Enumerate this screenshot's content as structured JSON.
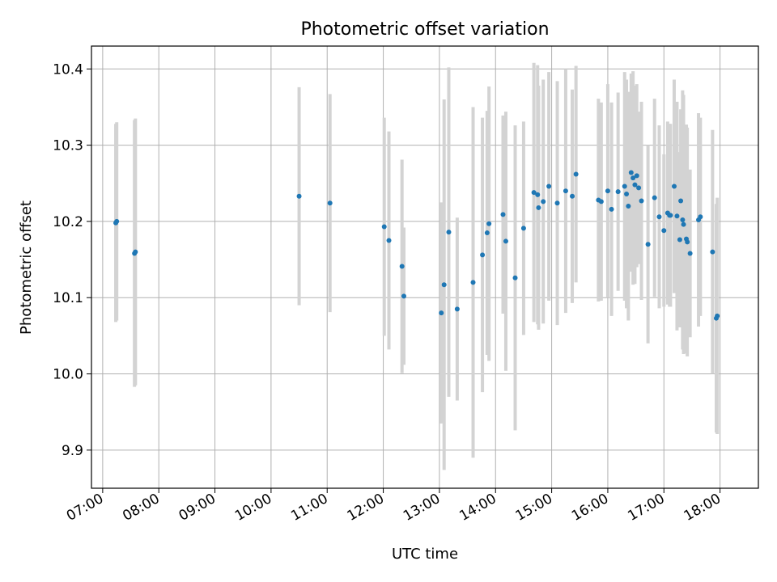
{
  "chart_data": {
    "type": "scatter",
    "title": "Photometric offset variation",
    "xlabel": "UTC time",
    "ylabel": "Photometric offset",
    "x_ticks": [
      "07:00",
      "08:00",
      "09:00",
      "10:00",
      "11:00",
      "12:00",
      "13:00",
      "14:00",
      "15:00",
      "16:00",
      "17:00",
      "18:00"
    ],
    "xlim": [
      "06:48",
      "18:41"
    ],
    "y_ticks": [
      "9.9",
      "10.0",
      "10.1",
      "10.2",
      "10.3",
      "10.4"
    ],
    "ylim": [
      9.85,
      10.43
    ],
    "grid": true,
    "point_color": "#1f77b4",
    "errorbar_color": "#d3d3d3",
    "series": [
      {
        "x": [
          "07:14",
          "07:15",
          "07:34",
          "07:35",
          "10:30",
          "11:03",
          "12:01",
          "12:06",
          "12:20",
          "12:22",
          "13:02",
          "13:05",
          "13:10",
          "13:19",
          "13:36",
          "13:46",
          "13:51",
          "13:53",
          "14:08",
          "14:11",
          "14:21",
          "14:30",
          "14:41",
          "14:45",
          "14:46",
          "14:51",
          "14:57",
          "15:06",
          "15:15",
          "15:22",
          "15:26",
          "15:50",
          "15:53",
          "16:00",
          "16:04",
          "16:11",
          "16:18",
          "16:20",
          "16:22",
          "16:25",
          "16:27",
          "16:29",
          "16:31",
          "16:33",
          "16:36",
          "16:43",
          "16:50",
          "16:55",
          "17:00",
          "17:04",
          "17:06",
          "17:07",
          "17:11",
          "17:14",
          "17:17",
          "17:18",
          "17:20",
          "17:21",
          "17:24",
          "17:25",
          "17:28",
          "17:37",
          "17:39",
          "17:52",
          "17:56",
          "17:57"
        ],
        "y": [
          10.198,
          10.2,
          10.158,
          10.16,
          10.233,
          10.224,
          10.193,
          10.175,
          10.141,
          10.102,
          10.08,
          10.117,
          10.186,
          10.085,
          10.12,
          10.156,
          10.185,
          10.197,
          10.209,
          10.174,
          10.126,
          10.191,
          10.238,
          10.235,
          10.218,
          10.226,
          10.246,
          10.224,
          10.24,
          10.233,
          10.262,
          10.228,
          10.226,
          10.24,
          10.216,
          10.239,
          10.246,
          10.236,
          10.22,
          10.264,
          10.257,
          10.248,
          10.26,
          10.244,
          10.227,
          10.17,
          10.231,
          10.206,
          10.188,
          10.211,
          10.208,
          10.208,
          10.246,
          10.207,
          10.176,
          10.227,
          10.202,
          10.196,
          10.177,
          10.173,
          10.158,
          10.202,
          10.206,
          10.16,
          10.073,
          10.076
        ],
        "yerr": [
          0.13,
          0.13,
          0.175,
          0.175,
          0.143,
          0.143,
          0.143,
          0.143,
          0.14,
          0.09,
          0.145,
          0.243,
          0.216,
          0.12,
          0.23,
          0.18,
          0.16,
          0.18,
          0.13,
          0.17,
          0.2,
          0.14,
          0.17,
          0.17,
          0.16,
          0.16,
          0.15,
          0.16,
          0.16,
          0.14,
          0.142,
          0.133,
          0.13,
          0.14,
          0.14,
          0.13,
          0.15,
          0.15,
          0.15,
          0.13,
          0.14,
          0.13,
          0.12,
          0.1,
          0.13,
          0.13,
          0.13,
          0.12,
          0.1,
          0.12,
          0.12,
          0.12,
          0.14,
          0.15,
          0.115,
          0.12,
          0.17,
          0.17,
          0.15,
          0.15,
          0.11,
          0.14,
          0.13,
          0.16,
          0.15,
          0.155
        ]
      }
    ]
  }
}
